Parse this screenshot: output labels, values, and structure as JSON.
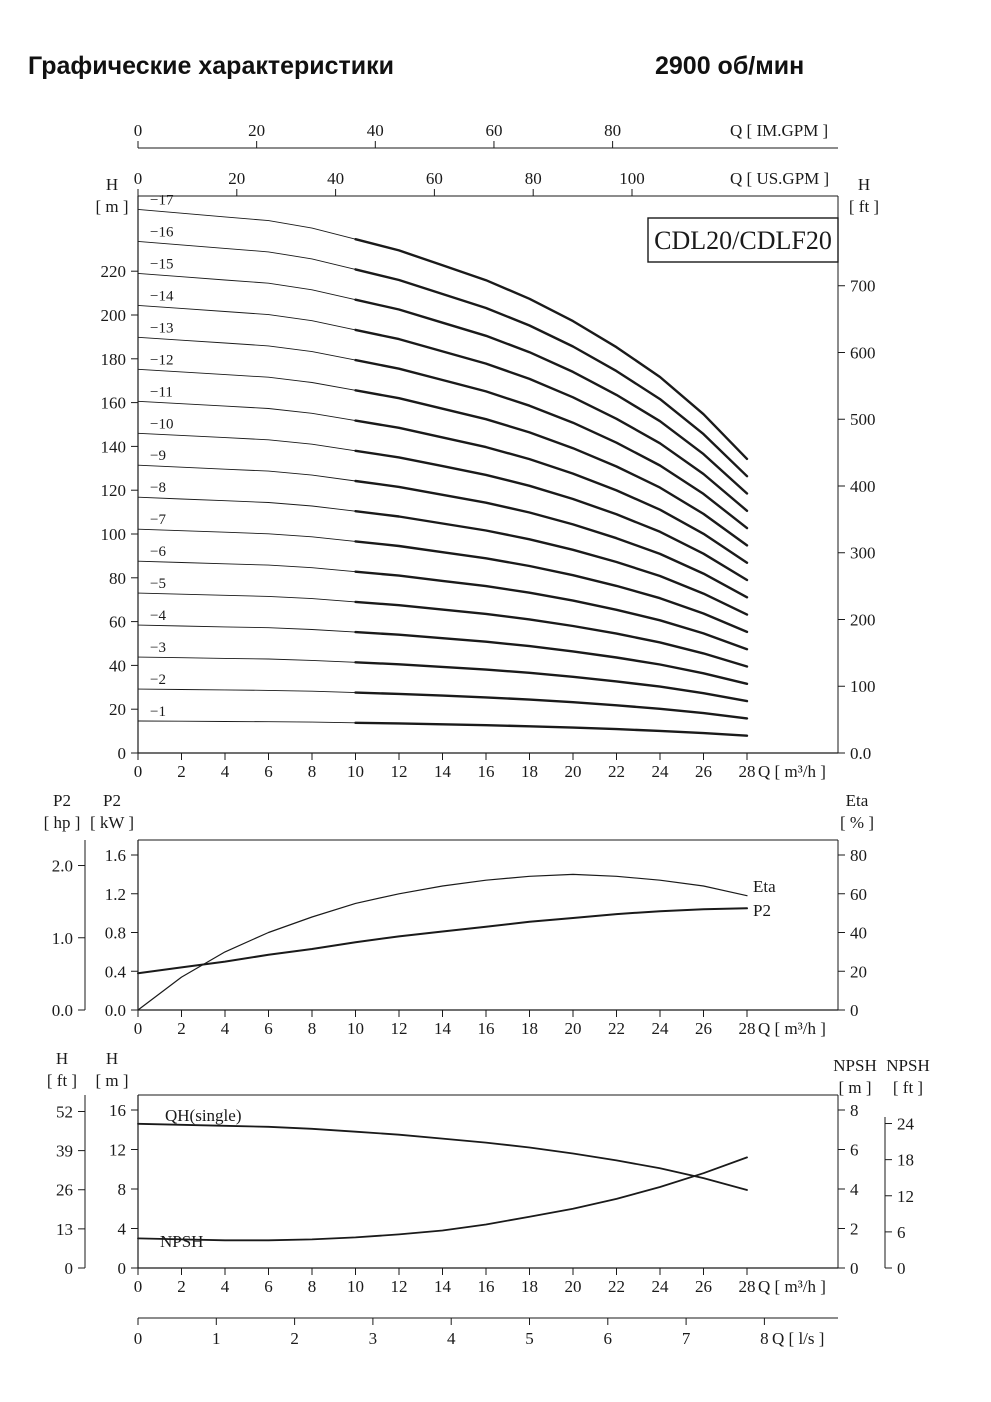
{
  "page": {
    "title": "Графические характеристики",
    "rpm": "2900 об/мин"
  },
  "chart_data": [
    {
      "id": "multistage-qh",
      "type": "line",
      "title": "CDL20/CDLF20",
      "xlabel": "Q [ m³/h ]",
      "xlim": [
        0,
        28
      ],
      "x_ticks": [
        0,
        2,
        4,
        6,
        8,
        10,
        12,
        14,
        16,
        18,
        20,
        22,
        24,
        26,
        28
      ],
      "top_axes": [
        {
          "label": "Q [ IM.GPM ]",
          "ticks": [
            0,
            20,
            40,
            60,
            80
          ],
          "units_per_m3h": 3.6662
        },
        {
          "label": "Q [ US.GPM ]",
          "ticks": [
            0,
            20,
            40,
            60,
            80,
            100
          ],
          "units_per_m3h": 4.4029
        }
      ],
      "y_left": {
        "name": "H",
        "unit": "[ m ]",
        "ticks": [
          0,
          20,
          40,
          60,
          80,
          100,
          120,
          140,
          160,
          180,
          200,
          220
        ],
        "lim": [
          0,
          254
        ]
      },
      "y_right": {
        "name": "H",
        "unit": "[ ft ]",
        "tick_values": [
          0,
          100,
          200,
          300,
          400,
          500,
          600,
          700
        ],
        "tick_labels": [
          "0.0",
          "100",
          "200",
          "300",
          "400",
          "500",
          "600",
          "700"
        ]
      },
      "q_m3h": [
        0,
        2,
        4,
        6,
        8,
        10,
        12,
        14,
        16,
        18,
        20,
        22,
        24,
        26,
        28
      ],
      "head_per_stage_m": [
        14.6,
        14.5,
        14.4,
        14.3,
        14.1,
        13.8,
        13.5,
        13.1,
        12.7,
        12.2,
        11.6,
        10.9,
        10.1,
        9.1,
        7.9
      ],
      "stages": [
        1,
        2,
        3,
        4,
        5,
        6,
        7,
        8,
        9,
        10,
        11,
        12,
        13,
        14,
        15,
        16,
        17
      ],
      "stage_labels": [
        "−1",
        "−2",
        "−3",
        "−4",
        "−5",
        "−6",
        "−7",
        "−8",
        "−9",
        "−10",
        "−11",
        "−12",
        "−13",
        "−14",
        "−15",
        "−16",
        "−17"
      ],
      "thick_range_q": [
        10,
        28
      ]
    },
    {
      "id": "power-efficiency",
      "type": "line",
      "xlabel": "Q [ m³/h ]",
      "xlim": [
        0,
        28
      ],
      "x_ticks": [
        0,
        2,
        4,
        6,
        8,
        10,
        12,
        14,
        16,
        18,
        20,
        22,
        24,
        26,
        28
      ],
      "y_left_outer": {
        "name": "P2",
        "unit": "[ hp ]",
        "tick_labels": [
          "0.0",
          "1.0",
          "2.0"
        ]
      },
      "y_left_inner": {
        "name": "P2",
        "unit": "[ kW ]",
        "tick_labels": [
          "0.0",
          "0.4",
          "0.8",
          "1.2",
          "1.6"
        ]
      },
      "y_right": {
        "name": "Eta",
        "unit": "[ % ]",
        "ticks": [
          0,
          20,
          40,
          60,
          80
        ]
      },
      "q_m3h": [
        0,
        2,
        4,
        6,
        8,
        10,
        12,
        14,
        16,
        18,
        20,
        22,
        24,
        26,
        28
      ],
      "series": [
        {
          "name": "P2",
          "unit": "kW",
          "values": [
            0.38,
            0.44,
            0.5,
            0.57,
            0.63,
            0.7,
            0.76,
            0.81,
            0.86,
            0.91,
            0.95,
            0.99,
            1.02,
            1.04,
            1.05
          ]
        },
        {
          "name": "Eta",
          "unit": "%",
          "values": [
            0,
            17,
            30,
            40,
            48,
            55,
            60,
            64,
            67,
            69,
            70,
            69,
            67,
            64,
            59
          ]
        }
      ]
    },
    {
      "id": "single-stage-npsh",
      "type": "line",
      "xlabel": "Q [ m³/h ]",
      "xlim": [
        0,
        28
      ],
      "x_ticks": [
        0,
        2,
        4,
        6,
        8,
        10,
        12,
        14,
        16,
        18,
        20,
        22,
        24,
        26,
        28
      ],
      "bottom_axis": {
        "label": "Q [ l/s ]",
        "ticks": [
          0,
          1,
          2,
          3,
          4,
          5,
          6,
          7,
          8
        ],
        "units_per_m3h": 0.27778
      },
      "y_left_outer": {
        "name": "H",
        "unit": "[ ft ]",
        "ticks": [
          0,
          13,
          26,
          39,
          52
        ]
      },
      "y_left_inner": {
        "name": "H",
        "unit": "[ m ]",
        "ticks": [
          0,
          4,
          8,
          12,
          16
        ]
      },
      "y_right_inner": {
        "name": "NPSH",
        "unit": "[ m ]",
        "ticks": [
          0,
          2,
          4,
          6,
          8
        ]
      },
      "y_right_outer": {
        "name": "NPSH",
        "unit": "[ ft ]",
        "ticks": [
          0,
          6,
          12,
          18,
          24
        ]
      },
      "q_m3h": [
        0,
        2,
        4,
        6,
        8,
        10,
        12,
        14,
        16,
        18,
        20,
        22,
        24,
        26,
        28
      ],
      "series": [
        {
          "name": "QH(single)",
          "unit": "m",
          "values": [
            14.6,
            14.5,
            14.4,
            14.3,
            14.1,
            13.8,
            13.5,
            13.1,
            12.7,
            12.2,
            11.6,
            10.9,
            10.1,
            9.1,
            7.9
          ]
        },
        {
          "name": "NPSH",
          "unit": "m",
          "values": [
            1.5,
            1.45,
            1.4,
            1.4,
            1.45,
            1.55,
            1.7,
            1.9,
            2.2,
            2.6,
            3.0,
            3.5,
            4.1,
            4.8,
            5.6
          ]
        }
      ]
    }
  ]
}
